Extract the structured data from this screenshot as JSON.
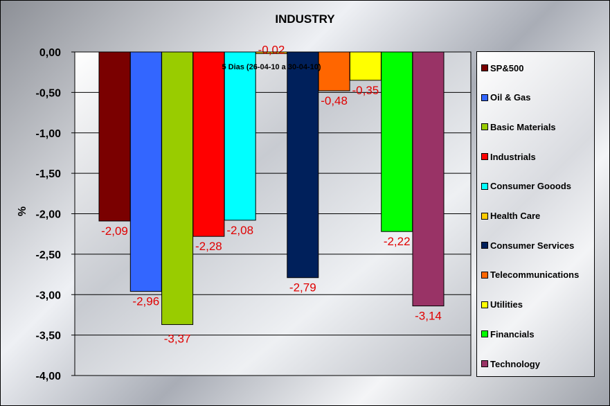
{
  "chart_data": {
    "type": "bar",
    "title": "INDUSTRY",
    "ylabel": "%",
    "ylim": [
      -4,
      0
    ],
    "yticks": [
      "0,00",
      "-0,50",
      "-1,00",
      "-1,50",
      "-2,00",
      "-2,50",
      "-3,00",
      "-3,50",
      "-4,00"
    ],
    "annotation": "5 Dias (26-04-10 a 30-04-10)",
    "grid": true,
    "legend_position": "right",
    "series": [
      {
        "name": "SP&500",
        "value": -2.09,
        "label": "-2,09",
        "color": "#7a0000"
      },
      {
        "name": "Oil & Gas",
        "value": -2.96,
        "label": "-2,96",
        "color": "#3366ff"
      },
      {
        "name": "Basic Materials",
        "value": -3.37,
        "label": "-3,37",
        "color": "#99cc00"
      },
      {
        "name": "Industrials",
        "value": -2.28,
        "label": "-2,28",
        "color": "#ff0000"
      },
      {
        "name": "Consumer Gooods",
        "value": -2.08,
        "label": "-2,08",
        "color": "#00ffff"
      },
      {
        "name": "Health Care",
        "value": -0.02,
        "label": "-0,02",
        "color": "#ffcc00"
      },
      {
        "name": "Consumer Services",
        "value": -2.79,
        "label": "-2,79",
        "color": "#00205b"
      },
      {
        "name": "Telecommunications",
        "value": -0.48,
        "label": "-0,48",
        "color": "#ff6600"
      },
      {
        "name": "Utilities",
        "value": -0.35,
        "label": "-0,35",
        "color": "#ffff00"
      },
      {
        "name": "Financials",
        "value": -2.22,
        "label": "-2,22",
        "color": "#00ff00"
      },
      {
        "name": "Technology",
        "value": -3.14,
        "label": "-3,14",
        "color": "#993366"
      }
    ]
  }
}
